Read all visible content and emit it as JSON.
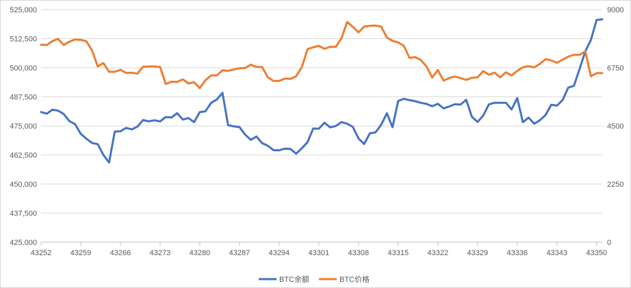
{
  "chart_data": {
    "type": "line",
    "x_ticks": [
      "43252",
      "43259",
      "43266",
      "43273",
      "43280",
      "43287",
      "43294",
      "43301",
      "43308",
      "43315",
      "43322",
      "43329",
      "43336",
      "43343",
      "43350"
    ],
    "x_range": [
      43252,
      43351
    ],
    "y_left": {
      "ticks": [
        "425,000",
        "437,500",
        "450,000",
        "462,500",
        "475,000",
        "487,500",
        "500,000",
        "512,500",
        "525,000"
      ],
      "range": [
        425000,
        525000
      ]
    },
    "y_right": {
      "ticks": [
        "0",
        "2250",
        "4500",
        "6750",
        "9000"
      ],
      "range": [
        0,
        9000
      ]
    },
    "grid": "horizontal",
    "legend_position": "bottom",
    "series": [
      {
        "name": "BTC余额",
        "axis": "left",
        "color": "#4472C4",
        "values": [
          [
            43252,
            480950
          ],
          [
            43253,
            480250
          ],
          [
            43254,
            481950
          ],
          [
            43255,
            481550
          ],
          [
            43256,
            480100
          ],
          [
            43257,
            477050
          ],
          [
            43258,
            475700
          ],
          [
            43259,
            471600
          ],
          [
            43260,
            469450
          ],
          [
            43261,
            467650
          ],
          [
            43262,
            467150
          ],
          [
            43263,
            462500
          ],
          [
            43264,
            459250
          ],
          [
            43265,
            472600
          ],
          [
            43266,
            472650
          ],
          [
            43267,
            474150
          ],
          [
            43268,
            473500
          ],
          [
            43269,
            474650
          ],
          [
            43270,
            477500
          ],
          [
            43271,
            476950
          ],
          [
            43272,
            477400
          ],
          [
            43273,
            476900
          ],
          [
            43274,
            478800
          ],
          [
            43275,
            478600
          ],
          [
            43276,
            480450
          ],
          [
            43277,
            477700
          ],
          [
            43278,
            478350
          ],
          [
            43279,
            476600
          ],
          [
            43280,
            480900
          ],
          [
            43281,
            481250
          ],
          [
            43282,
            484900
          ],
          [
            43283,
            486350
          ],
          [
            43284,
            489200
          ],
          [
            43285,
            475300
          ],
          [
            43286,
            474800
          ],
          [
            43287,
            474500
          ],
          [
            43288,
            471250
          ],
          [
            43289,
            469000
          ],
          [
            43290,
            470450
          ],
          [
            43291,
            467550
          ],
          [
            43292,
            466450
          ],
          [
            43293,
            464550
          ],
          [
            43294,
            464500
          ],
          [
            43295,
            465200
          ],
          [
            43296,
            465050
          ],
          [
            43297,
            463050
          ],
          [
            43298,
            465350
          ],
          [
            43299,
            468000
          ],
          [
            43300,
            473850
          ],
          [
            43301,
            473800
          ],
          [
            43302,
            476350
          ],
          [
            43303,
            474350
          ],
          [
            43304,
            474950
          ],
          [
            43305,
            476650
          ],
          [
            43306,
            475900
          ],
          [
            43307,
            474550
          ],
          [
            43308,
            469600
          ],
          [
            43309,
            467200
          ],
          [
            43310,
            471800
          ],
          [
            43311,
            472200
          ],
          [
            43312,
            475500
          ],
          [
            43313,
            480400
          ],
          [
            43314,
            474400
          ],
          [
            43315,
            485700
          ],
          [
            43316,
            486650
          ],
          [
            43317,
            486050
          ],
          [
            43318,
            485600
          ],
          [
            43319,
            484900
          ],
          [
            43320,
            484450
          ],
          [
            43321,
            483450
          ],
          [
            43322,
            484500
          ],
          [
            43323,
            482500
          ],
          [
            43324,
            483350
          ],
          [
            43325,
            484300
          ],
          [
            43326,
            484150
          ],
          [
            43327,
            486200
          ],
          [
            43328,
            478900
          ],
          [
            43329,
            476700
          ],
          [
            43330,
            479450
          ],
          [
            43331,
            484200
          ],
          [
            43332,
            484950
          ],
          [
            43333,
            484950
          ],
          [
            43334,
            484950
          ],
          [
            43335,
            482050
          ],
          [
            43336,
            486950
          ],
          [
            43337,
            476550
          ],
          [
            43338,
            478550
          ],
          [
            43339,
            475950
          ],
          [
            43340,
            477400
          ],
          [
            43341,
            479700
          ],
          [
            43342,
            484100
          ],
          [
            43343,
            483700
          ],
          [
            43344,
            486050
          ],
          [
            43345,
            491450
          ],
          [
            43346,
            492200
          ],
          [
            43347,
            499500
          ],
          [
            43348,
            507000
          ],
          [
            43349,
            511950
          ],
          [
            43350,
            520500
          ],
          [
            43351,
            520800
          ]
        ]
      },
      {
        "name": "BTC价格",
        "axis": "right",
        "color": "#ED7D31",
        "values": [
          [
            43252,
            7640
          ],
          [
            43253,
            7630
          ],
          [
            43254,
            7780
          ],
          [
            43255,
            7870
          ],
          [
            43256,
            7630
          ],
          [
            43257,
            7760
          ],
          [
            43258,
            7840
          ],
          [
            43259,
            7830
          ],
          [
            43260,
            7770
          ],
          [
            43261,
            7420
          ],
          [
            43262,
            6800
          ],
          [
            43263,
            6930
          ],
          [
            43264,
            6590
          ],
          [
            43265,
            6590
          ],
          [
            43266,
            6670
          ],
          [
            43267,
            6550
          ],
          [
            43268,
            6560
          ],
          [
            43269,
            6520
          ],
          [
            43270,
            6790
          ],
          [
            43271,
            6800
          ],
          [
            43272,
            6800
          ],
          [
            43273,
            6780
          ],
          [
            43274,
            6120
          ],
          [
            43275,
            6210
          ],
          [
            43276,
            6200
          ],
          [
            43277,
            6300
          ],
          [
            43278,
            6140
          ],
          [
            43279,
            6190
          ],
          [
            43280,
            5960
          ],
          [
            43281,
            6270
          ],
          [
            43282,
            6450
          ],
          [
            43283,
            6450
          ],
          [
            43284,
            6650
          ],
          [
            43285,
            6630
          ],
          [
            43286,
            6680
          ],
          [
            43287,
            6730
          ],
          [
            43288,
            6740
          ],
          [
            43289,
            6870
          ],
          [
            43290,
            6780
          ],
          [
            43291,
            6780
          ],
          [
            43292,
            6380
          ],
          [
            43293,
            6240
          ],
          [
            43294,
            6240
          ],
          [
            43295,
            6330
          ],
          [
            43296,
            6320
          ],
          [
            43297,
            6420
          ],
          [
            43298,
            6770
          ],
          [
            43299,
            7470
          ],
          [
            43300,
            7540
          ],
          [
            43301,
            7600
          ],
          [
            43302,
            7480
          ],
          [
            43303,
            7560
          ],
          [
            43304,
            7560
          ],
          [
            43305,
            7890
          ],
          [
            43306,
            8520
          ],
          [
            43307,
            8330
          ],
          [
            43308,
            8120
          ],
          [
            43309,
            8340
          ],
          [
            43310,
            8370
          ],
          [
            43311,
            8380
          ],
          [
            43312,
            8340
          ],
          [
            43313,
            7920
          ],
          [
            43314,
            7790
          ],
          [
            43315,
            7730
          ],
          [
            43316,
            7600
          ],
          [
            43317,
            7130
          ],
          [
            43318,
            7160
          ],
          [
            43319,
            7050
          ],
          [
            43320,
            6800
          ],
          [
            43321,
            6370
          ],
          [
            43322,
            6660
          ],
          [
            43323,
            6250
          ],
          [
            43324,
            6350
          ],
          [
            43325,
            6410
          ],
          [
            43326,
            6350
          ],
          [
            43327,
            6280
          ],
          [
            43328,
            6360
          ],
          [
            43329,
            6380
          ],
          [
            43330,
            6620
          ],
          [
            43331,
            6480
          ],
          [
            43332,
            6560
          ],
          [
            43333,
            6380
          ],
          [
            43334,
            6570
          ],
          [
            43335,
            6450
          ],
          [
            43336,
            6630
          ],
          [
            43337,
            6770
          ],
          [
            43338,
            6810
          ],
          [
            43339,
            6760
          ],
          [
            43340,
            6900
          ],
          [
            43341,
            7080
          ],
          [
            43342,
            7030
          ],
          [
            43343,
            6940
          ],
          [
            43344,
            7060
          ],
          [
            43345,
            7180
          ],
          [
            43346,
            7250
          ],
          [
            43347,
            7250
          ],
          [
            43348,
            7380
          ],
          [
            43349,
            6420
          ],
          [
            43350,
            6540
          ],
          [
            43351,
            6540
          ]
        ]
      }
    ]
  }
}
